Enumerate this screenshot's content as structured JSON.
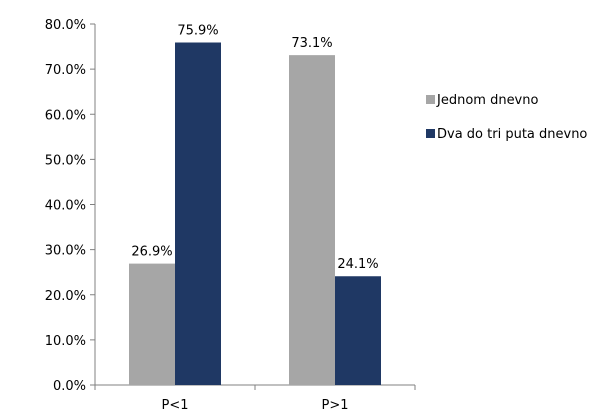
{
  "chart_data": {
    "type": "bar",
    "categories": [
      "P<1",
      "P>1"
    ],
    "series": [
      {
        "name": "Jednom dnevno",
        "values": [
          26.9,
          73.1
        ],
        "color": "#a6a6a6",
        "labels": [
          "26.9%",
          "73.1%"
        ]
      },
      {
        "name": "Dva do tri puta dnevno",
        "values": [
          75.9,
          24.1
        ],
        "color": "#1f3864",
        "labels": [
          "75.9%",
          "24.1%"
        ]
      }
    ],
    "ylim": [
      0,
      80
    ],
    "yticks": [
      0,
      10,
      20,
      30,
      40,
      50,
      60,
      70,
      80
    ],
    "ytick_labels": [
      "0.0%",
      "10.0%",
      "20.0%",
      "30.0%",
      "40.0%",
      "50.0%",
      "60.0%",
      "70.0%",
      "80.0%"
    ],
    "grid": false,
    "legend_position": "right"
  }
}
